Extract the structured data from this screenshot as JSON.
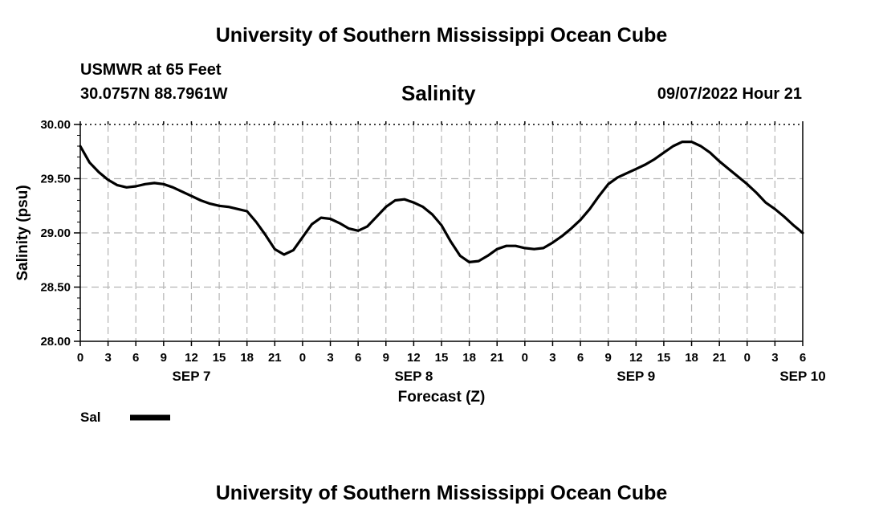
{
  "header": {
    "title": "University of Southern Mississippi Ocean Cube",
    "station": "USMWR at 65 Feet",
    "coords": "30.0757N  88.7961W",
    "datetime": "09/07/2022 Hour 21"
  },
  "footer": {
    "title": "University of Southern Mississippi Ocean Cube"
  },
  "chart_data": {
    "type": "line",
    "title": "Salinity",
    "xlabel": "Forecast (Z)",
    "ylabel": "Salinity (psu)",
    "ylim": [
      28.0,
      30.0
    ],
    "yticks": [
      "28.00",
      "28.50",
      "29.00",
      "29.50",
      "30.00"
    ],
    "xlim": [
      0,
      78
    ],
    "xtick_labels": [
      "0",
      "3",
      "6",
      "9",
      "12",
      "15",
      "18",
      "21",
      "0",
      "3",
      "6",
      "9",
      "12",
      "15",
      "18",
      "21",
      "0",
      "3",
      "6",
      "9",
      "12",
      "15",
      "18",
      "21",
      "0",
      "3",
      "6"
    ],
    "day_labels": [
      {
        "label": "SEP 7",
        "hour": 12
      },
      {
        "label": "SEP 8",
        "hour": 36
      },
      {
        "label": "SEP 9",
        "hour": 60
      },
      {
        "label": "SEP 10",
        "hour": 78
      }
    ],
    "grid": true,
    "legend_position": "bottom-left",
    "series": [
      {
        "name": "Sal",
        "color": "#000000",
        "x": [
          0,
          1,
          2,
          3,
          4,
          5,
          6,
          7,
          8,
          9,
          10,
          11,
          12,
          13,
          14,
          15,
          16,
          17,
          18,
          19,
          20,
          21,
          22,
          23,
          24,
          25,
          26,
          27,
          28,
          29,
          30,
          31,
          32,
          33,
          34,
          35,
          36,
          37,
          38,
          39,
          40,
          41,
          42,
          43,
          44,
          45,
          46,
          47,
          48,
          49,
          50,
          51,
          52,
          53,
          54,
          55,
          56,
          57,
          58,
          59,
          60,
          61,
          62,
          63,
          64,
          65,
          66,
          67,
          68,
          69,
          70,
          71,
          72,
          73,
          74,
          75,
          76,
          77,
          78
        ],
        "y": [
          29.8,
          29.65,
          29.56,
          29.49,
          29.44,
          29.42,
          29.43,
          29.45,
          29.46,
          29.45,
          29.42,
          29.38,
          29.34,
          29.3,
          29.27,
          29.25,
          29.24,
          29.22,
          29.2,
          29.1,
          28.98,
          28.85,
          28.8,
          28.84,
          28.96,
          29.08,
          29.14,
          29.13,
          29.09,
          29.04,
          29.02,
          29.06,
          29.15,
          29.24,
          29.3,
          29.31,
          29.28,
          29.24,
          29.17,
          29.07,
          28.92,
          28.79,
          28.73,
          28.74,
          28.79,
          28.85,
          28.88,
          28.88,
          28.86,
          28.85,
          28.86,
          28.91,
          28.97,
          29.04,
          29.12,
          29.22,
          29.34,
          29.45,
          29.51,
          29.55,
          29.59,
          29.63,
          29.68,
          29.74,
          29.8,
          29.84,
          29.84,
          29.8,
          29.74,
          29.66,
          29.59,
          29.52,
          29.45,
          29.37,
          29.28,
          29.22,
          29.15,
          29.07,
          29.0
        ]
      }
    ]
  }
}
